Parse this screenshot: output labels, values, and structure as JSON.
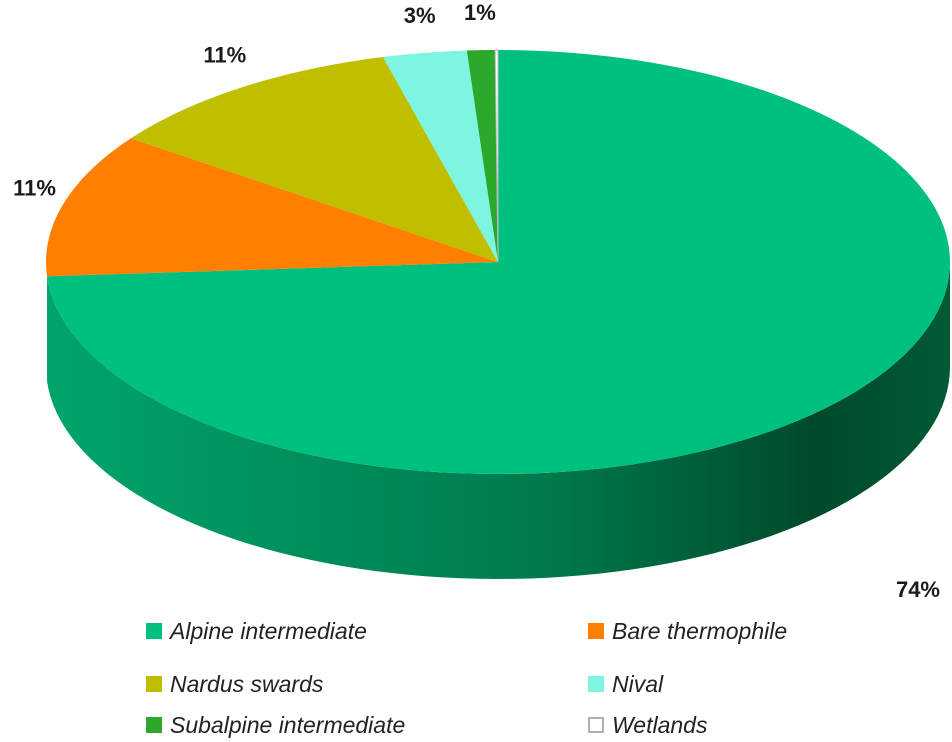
{
  "chart_data": {
    "type": "pie",
    "title": "",
    "slices": [
      {
        "name": "Alpine intermediate",
        "value": 74,
        "label": "74%",
        "color": "#00c07f"
      },
      {
        "name": "Bare thermophile",
        "value": 11,
        "label": "11%",
        "color": "#ff8000"
      },
      {
        "name": "Nardus swards",
        "value": 11,
        "label": "11%",
        "color": "#bfbf00"
      },
      {
        "name": "Nival",
        "value": 3,
        "label": "3%",
        "color": "#7df5e0"
      },
      {
        "name": "Subalpine intermediate",
        "value": 1,
        "label": "1%",
        "color": "#2ca82c"
      },
      {
        "name": "Wetlands",
        "value": 0.1,
        "label": "",
        "color": "#ffffff"
      }
    ],
    "legend_position": "bottom",
    "style": "3d"
  }
}
